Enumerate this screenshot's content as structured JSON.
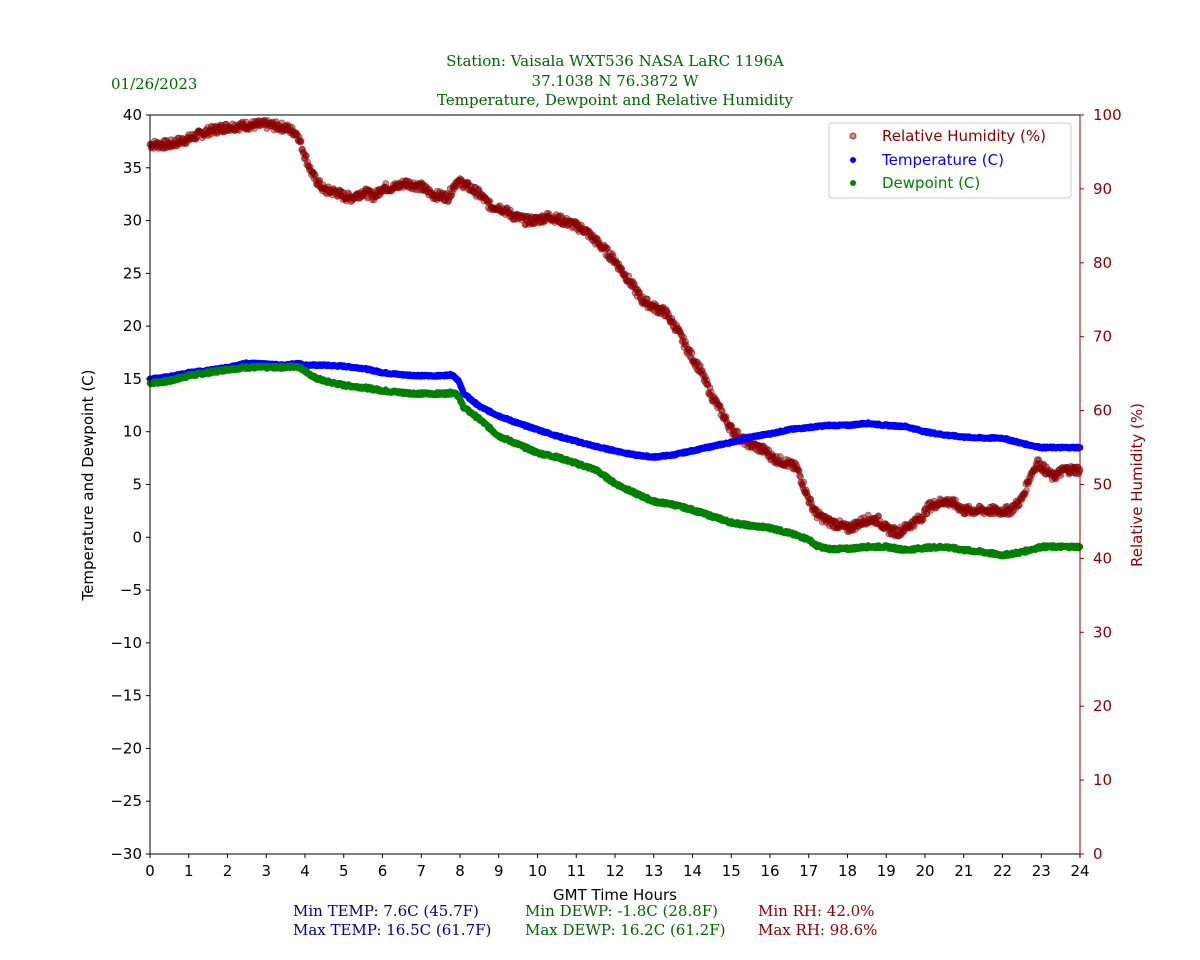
{
  "header": {
    "date": "01/26/2023",
    "title_line1": "Station:  Vaisala WXT536  NASA LaRC 1196A",
    "title_line2": "37.1038 N 76.3872 W",
    "title_line3": "Temperature, Dewpoint and Relative Humidity"
  },
  "colors": {
    "title": "#006400",
    "temperature": "#0000ff",
    "dewpoint": "#008000",
    "humidity": "#8b0000",
    "stats_temp": "#00008b"
  },
  "stats": {
    "min_temp": "Min TEMP: 7.6C (45.7F)",
    "max_temp": "Max TEMP: 16.5C (61.7F)",
    "min_dewp": "Min DEWP: -1.8C (28.8F)",
    "max_dewp": "Max DEWP: 16.2C (61.2F)",
    "min_rh": "Min RH: 42.0%",
    "max_rh": "Max RH: 98.6%"
  },
  "chart_data": {
    "type": "scatter",
    "xlabel": "GMT Time Hours",
    "ylabel": "Temperature and Dewpoint (C)",
    "y2label": "Relative Humidity (%)",
    "xlim": [
      0,
      24
    ],
    "ylim": [
      -30,
      40
    ],
    "y2lim": [
      0,
      100
    ],
    "xticks": [
      "0",
      "1",
      "2",
      "3",
      "4",
      "5",
      "6",
      "7",
      "8",
      "9",
      "10",
      "11",
      "12",
      "13",
      "14",
      "15",
      "16",
      "17",
      "18",
      "19",
      "20",
      "21",
      "22",
      "23",
      "24"
    ],
    "yticks": [
      "40",
      "35",
      "30",
      "25",
      "20",
      "15",
      "10",
      "5",
      "0",
      "−5",
      "−10",
      "−15",
      "−20",
      "−25",
      "−30"
    ],
    "y2ticks": [
      "100",
      "90",
      "80",
      "70",
      "60",
      "50",
      "40",
      "30",
      "20",
      "10",
      "0"
    ],
    "legend": {
      "position": "top-right",
      "entries": [
        "Relative Humidity (%)",
        "Temperature (C)",
        "Dewpoint (C)"
      ]
    },
    "series": [
      {
        "name": "Relative Humidity (%)",
        "axis": "right",
        "x": [
          0,
          0.5,
          1,
          1.5,
          2,
          2.5,
          3,
          3.5,
          3.8,
          4,
          4.2,
          4.5,
          4.8,
          5,
          5.2,
          5.5,
          5.8,
          6,
          6.3,
          6.6,
          7,
          7.3,
          7.7,
          7.9,
          8.1,
          8.5,
          8.8,
          9,
          9.4,
          9.7,
          10,
          10.3,
          10.6,
          10.9,
          11.2,
          11.6,
          12,
          12.4,
          12.7,
          13,
          13.3,
          13.6,
          13.9,
          14.2,
          14.5,
          14.8,
          15,
          15.3,
          15.6,
          15.9,
          16.1,
          16.4,
          16.7,
          17,
          17.2,
          17.5,
          17.8,
          18,
          18.2,
          18.5,
          18.8,
          19,
          19.3,
          19.6,
          19.9,
          20.1,
          20.5,
          20.8,
          21,
          21.3,
          21.6,
          21.9,
          22.2,
          22.5,
          22.7,
          22.9,
          23.1,
          23.3,
          23.6,
          24
        ],
        "values": [
          96,
          96,
          96.8,
          97.8,
          98.4,
          98.6,
          98.7,
          98.3,
          97.5,
          94.5,
          91.8,
          89.8,
          89.6,
          89,
          88.8,
          89.6,
          89,
          90.2,
          90.2,
          90.8,
          90.3,
          89.2,
          88.9,
          91,
          90.7,
          89.3,
          87.6,
          87.6,
          86.3,
          85.7,
          85.8,
          86.3,
          85.8,
          85.2,
          84.5,
          82.5,
          80.3,
          77.3,
          75,
          74,
          73.3,
          71,
          68,
          65.5,
          62,
          59.3,
          57.5,
          56,
          55.2,
          54.5,
          53.5,
          53,
          52.2,
          48,
          46,
          45,
          44.5,
          44,
          44.5,
          45.3,
          45.2,
          44,
          43.5,
          44.5,
          45.5,
          47,
          47.8,
          47.3,
          46.5,
          46.5,
          46.5,
          46.4,
          46.5,
          48,
          51,
          53,
          52,
          51,
          52,
          52
        ]
      },
      {
        "name": "Temperature (C)",
        "axis": "left",
        "x": [
          0,
          0.5,
          1,
          1.5,
          2,
          2.5,
          3,
          3.5,
          3.8,
          4,
          4.5,
          5,
          5.5,
          6,
          6.5,
          7,
          7.5,
          7.8,
          7.95,
          8.1,
          8.5,
          9,
          9.5,
          10,
          10.5,
          11,
          11.5,
          12,
          12.5,
          13,
          13.5,
          14,
          14.5,
          15,
          15.5,
          16,
          16.5,
          17,
          17.5,
          18,
          18.5,
          19,
          19.5,
          20,
          20.5,
          21,
          21.5,
          22,
          22.5,
          23,
          23.5,
          24
        ],
        "values": [
          15,
          15.2,
          15.6,
          15.8,
          16.1,
          16.5,
          16.4,
          16.3,
          16.5,
          16.3,
          16.3,
          16.2,
          16,
          15.6,
          15.4,
          15.3,
          15.3,
          15.4,
          14.9,
          13.6,
          12.4,
          11.5,
          10.8,
          10.2,
          9.6,
          9.1,
          8.6,
          8.2,
          7.8,
          7.6,
          7.8,
          8.2,
          8.6,
          9,
          9.5,
          9.8,
          10.2,
          10.4,
          10.6,
          10.6,
          10.8,
          10.6,
          10.5,
          10,
          9.7,
          9.5,
          9.4,
          9.4,
          8.9,
          8.5,
          8.5,
          8.5
        ]
      },
      {
        "name": "Dewpoint (C)",
        "axis": "left",
        "x": [
          0,
          0.5,
          1,
          1.5,
          2,
          2.5,
          3,
          3.5,
          3.8,
          4,
          4.2,
          4.5,
          5,
          5.5,
          6,
          6.5,
          7,
          7.5,
          7.9,
          8,
          8.1,
          8.5,
          9,
          9.5,
          10,
          10.5,
          11,
          11.5,
          12,
          12.5,
          13,
          13.5,
          14,
          14.5,
          15,
          15.5,
          16,
          16.5,
          17,
          17.2,
          17.5,
          18,
          18.5,
          19,
          19.5,
          20,
          20.5,
          21,
          21.5,
          22,
          22.5,
          23,
          23.5,
          24
        ],
        "values": [
          14.6,
          14.8,
          15.3,
          15.6,
          15.9,
          16.1,
          16.1,
          16.1,
          16.2,
          15.8,
          15.2,
          14.8,
          14.4,
          14.2,
          13.9,
          13.7,
          13.6,
          13.6,
          13.7,
          13,
          12.3,
          11.2,
          9.6,
          8.8,
          8,
          7.6,
          7,
          6.4,
          5.1,
          4.2,
          3.4,
          3.1,
          2.6,
          2,
          1.4,
          1.1,
          0.9,
          0.4,
          -0.2,
          -0.8,
          -1.1,
          -1.1,
          -0.9,
          -0.9,
          -1.2,
          -1,
          -0.9,
          -1.2,
          -1.4,
          -1.7,
          -1.4,
          -0.9,
          -0.9,
          -0.9
        ]
      }
    ]
  }
}
